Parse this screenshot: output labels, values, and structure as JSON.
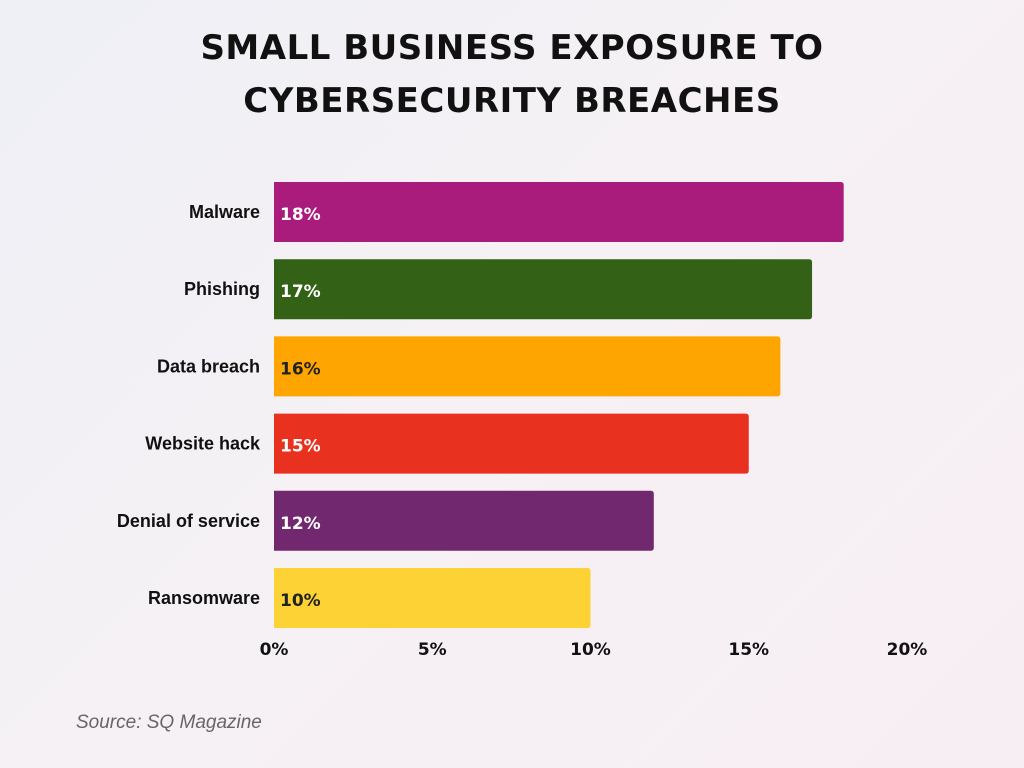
{
  "chart_data": {
    "type": "bar",
    "orientation": "horizontal",
    "title_lines": [
      "SMALL BUSINESS EXPOSURE TO",
      "CYBERSECURITY BREACHES"
    ],
    "categories": [
      "Malware",
      "Phishing",
      "Data breach",
      "Website hack",
      "Denial of service",
      "Ransomware"
    ],
    "values": [
      18,
      17,
      16,
      15,
      12,
      10
    ],
    "data_labels": [
      "18%",
      "17%",
      "16%",
      "15%",
      "12%",
      "10%"
    ],
    "colors": [
      "#A91C7B",
      "#336115",
      "#FFA502",
      "#E8311F",
      "#72286F",
      "#FDD234"
    ],
    "label_colors": [
      "#ffffff",
      "#ffffff",
      "#222222",
      "#ffffff",
      "#ffffff",
      "#222222"
    ],
    "xlim": [
      0,
      20
    ],
    "xticks": [
      0,
      5,
      10,
      15,
      20
    ],
    "xtick_labels": [
      "0%",
      "5%",
      "10%",
      "15%",
      "20%"
    ],
    "xlabel": "",
    "ylabel": "",
    "grid": false,
    "legend": "none"
  },
  "source": "Source: SQ Magazine"
}
